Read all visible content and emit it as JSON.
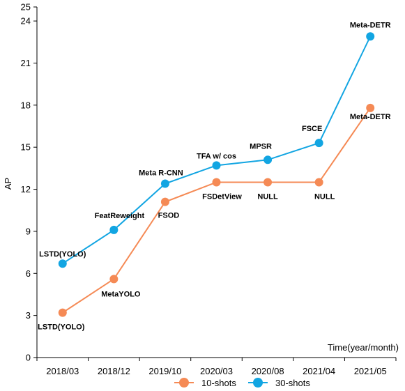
{
  "chart_data": {
    "type": "line",
    "categories": [
      "2018/03",
      "2018/12",
      "2019/10",
      "2020/03",
      "2020/08",
      "2021/04",
      "2021/05"
    ],
    "xlabel": "Time(year/month)",
    "ylabel": "AP",
    "ylim": [
      0,
      25
    ],
    "yticks": [
      0,
      3,
      6,
      9,
      12,
      15,
      18,
      21,
      24,
      25
    ],
    "grid": false,
    "legend": "bottom",
    "series": [
      {
        "name": "10-shots",
        "color": "#f58a55",
        "values": [
          3.2,
          5.6,
          11.1,
          12.5,
          12.5,
          12.5,
          17.8
        ],
        "labels": [
          "LSTD(YOLO)",
          "MetaYOLO",
          "FSOD",
          "FSDetView",
          "NULL",
          "NULL",
          "Meta-DETR"
        ]
      },
      {
        "name": "30-shots",
        "color": "#12a5e2",
        "values": [
          6.7,
          9.1,
          12.4,
          13.7,
          14.1,
          15.3,
          22.9
        ],
        "labels": [
          "LSTD(YOLO)",
          "FeatReweight",
          "Meta R-CNN",
          "TFA w/ cos",
          "MPSR",
          "FSCE",
          "Meta-DETR"
        ]
      }
    ]
  }
}
